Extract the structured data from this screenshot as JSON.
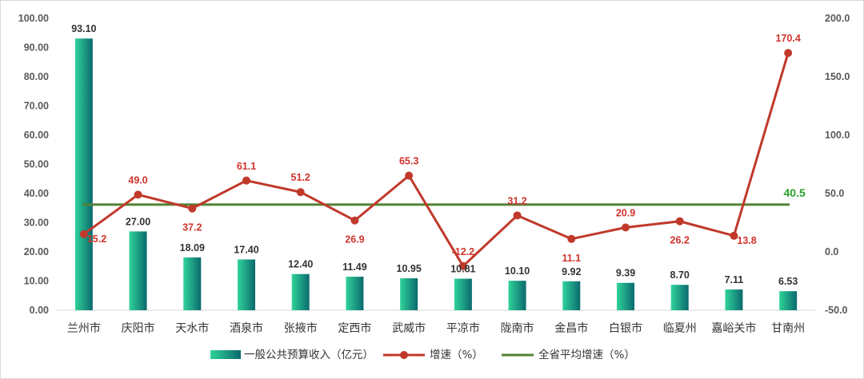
{
  "chart_data": {
    "type": "bar",
    "categories": [
      "兰州市",
      "庆阳市",
      "天水市",
      "酒泉市",
      "张掖市",
      "定西市",
      "武威市",
      "平凉市",
      "陇南市",
      "金昌市",
      "白银市",
      "临夏州",
      "嘉峪关市",
      "甘南州"
    ],
    "series": [
      {
        "name": "一般公共预算收入（亿元）",
        "type": "bar",
        "axis": "left",
        "values": [
          93.1,
          27.0,
          18.09,
          17.4,
          12.4,
          11.49,
          10.95,
          10.81,
          10.1,
          9.92,
          9.39,
          8.7,
          7.11,
          6.53
        ],
        "labels": [
          "93.10",
          "27.00",
          "18.09",
          "17.40",
          "12.40",
          "11.49",
          "10.95",
          "10.81",
          "10.10",
          "9.92",
          "9.39",
          "8.70",
          "7.11",
          "6.53"
        ]
      },
      {
        "name": "增速（%）",
        "type": "line",
        "axis": "right",
        "values": [
          15.2,
          49.0,
          37.2,
          61.1,
          51.2,
          26.9,
          65.3,
          -12.2,
          31.2,
          11.1,
          20.9,
          26.2,
          13.8,
          170.4
        ],
        "labels": [
          "15.2",
          "49.0",
          "37.2",
          "61.1",
          "51.2",
          "26.9",
          "65.3",
          "-12.2",
          "31.2",
          "11.1",
          "20.9",
          "26.2",
          "13.8",
          "170.4"
        ]
      },
      {
        "name": "全省平均增速（%）",
        "type": "line",
        "axis": "right",
        "value": 40.5,
        "label": "40.5"
      }
    ],
    "y_left": {
      "range": [
        0,
        100
      ],
      "ticks": [
        "0.00",
        "10.00",
        "20.00",
        "30.00",
        "40.00",
        "50.00",
        "60.00",
        "70.00",
        "80.00",
        "90.00",
        "100.00"
      ]
    },
    "y_right": {
      "range": [
        -50,
        200
      ],
      "ticks": [
        "-50.0",
        "0.0",
        "50.0",
        "100.0",
        "150.0",
        "200.0"
      ]
    },
    "legend_position": "bottom",
    "grid": false,
    "colors": {
      "bar_light": "#2fd39a",
      "bar_dark": "#0b6a6e",
      "line": "#c0392b",
      "avg_line": "#548235",
      "avg_text": "#2aa02a",
      "line_label": "#d0332b"
    }
  }
}
